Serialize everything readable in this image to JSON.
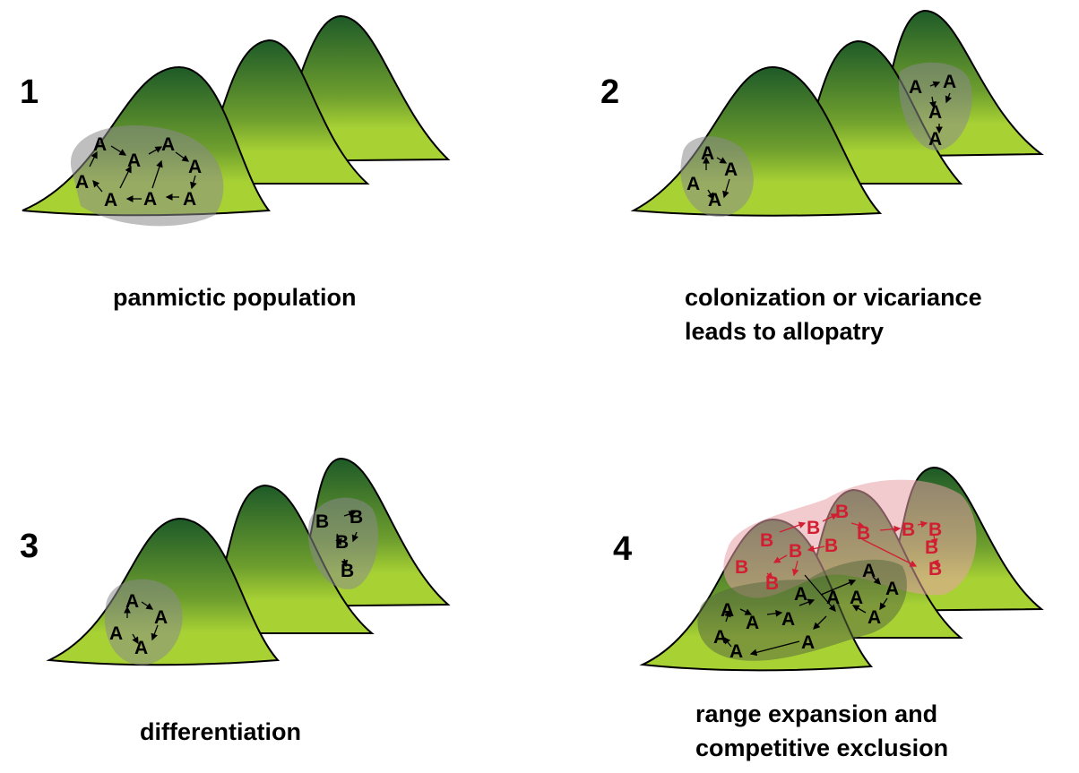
{
  "panels": [
    {
      "number": "1",
      "caption_lines": [
        "panmictic population"
      ],
      "labels": [
        "A",
        "A",
        "A",
        "A",
        "A",
        "A",
        "A",
        "A"
      ]
    },
    {
      "number": "2",
      "caption_lines": [
        "colonization or vicariance",
        "leads to allopatry"
      ],
      "labels": [
        "A",
        "A",
        "A",
        "A",
        "A",
        "A",
        "A",
        "A"
      ]
    },
    {
      "number": "3",
      "caption_lines": [
        "differentiation"
      ],
      "labels": [
        "A",
        "A",
        "A",
        "A",
        "B",
        "B",
        "B",
        "B"
      ]
    },
    {
      "number": "4",
      "caption_lines": [
        "range expansion and",
        "competitive exclusion"
      ],
      "labels": [
        "B",
        "B",
        "B",
        "B",
        "B",
        "B",
        "B",
        "B",
        "B",
        "B",
        "B",
        "A",
        "A",
        "A",
        "A",
        "A",
        "A",
        "A",
        "A",
        "A",
        "A",
        "A",
        "A"
      ]
    }
  ],
  "colors": {
    "hill_top": "#1e5a28",
    "hill_bottom": "#a8d234",
    "population_a": "#000000",
    "population_b": "#d21e32",
    "area_a": "#8a8a8a",
    "area_b": "#e8a0a8"
  }
}
